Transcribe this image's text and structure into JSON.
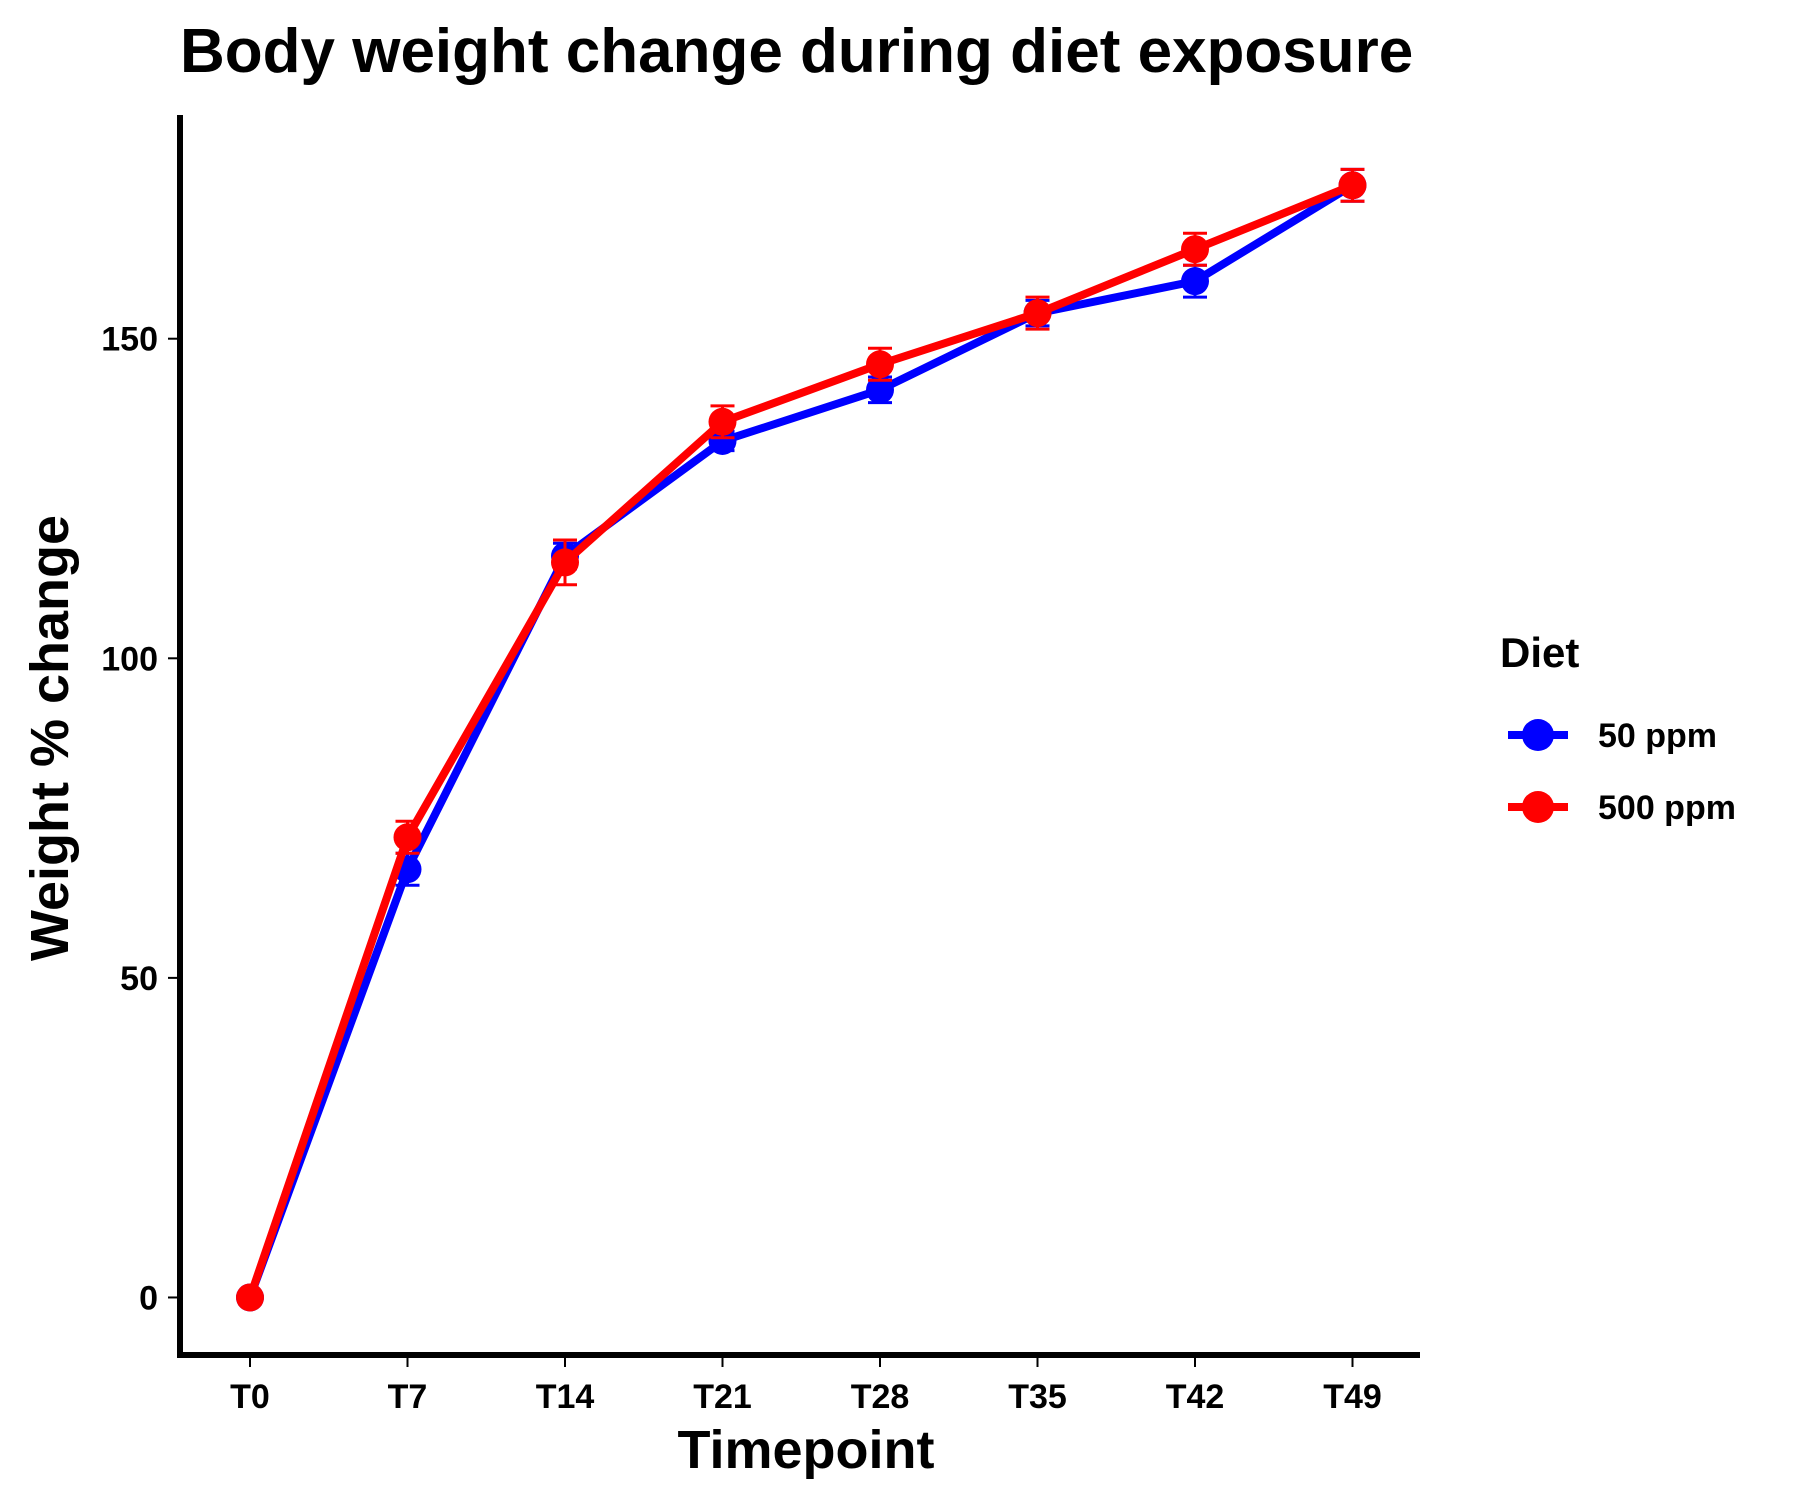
{
  "chart_data": {
    "type": "line",
    "title": "Body weight change during diet exposure",
    "xlabel": "Timepoint",
    "ylabel": "Weight % change",
    "categories": [
      "T0",
      "T7",
      "T14",
      "T21",
      "T28",
      "T35",
      "T42",
      "T49"
    ],
    "yticks": [
      0,
      50,
      100,
      150
    ],
    "ylim": [
      -9,
      185
    ],
    "grid": false,
    "legend": {
      "title": "Diet",
      "placement": "right"
    },
    "series": [
      {
        "name": "50 ppm",
        "color": "#0000ff",
        "values": [
          0,
          67,
          116,
          134,
          142,
          154,
          159,
          174
        ],
        "errors": [
          0,
          2.5,
          2.0,
          1.5,
          2.0,
          2.0,
          2.5,
          2.5
        ]
      },
      {
        "name": "500 ppm",
        "color": "#ff0000",
        "values": [
          0,
          72,
          115,
          137,
          146,
          154,
          164,
          174
        ],
        "errors": [
          0,
          2.5,
          3.5,
          2.5,
          2.5,
          2.5,
          2.5,
          2.5
        ]
      }
    ]
  }
}
